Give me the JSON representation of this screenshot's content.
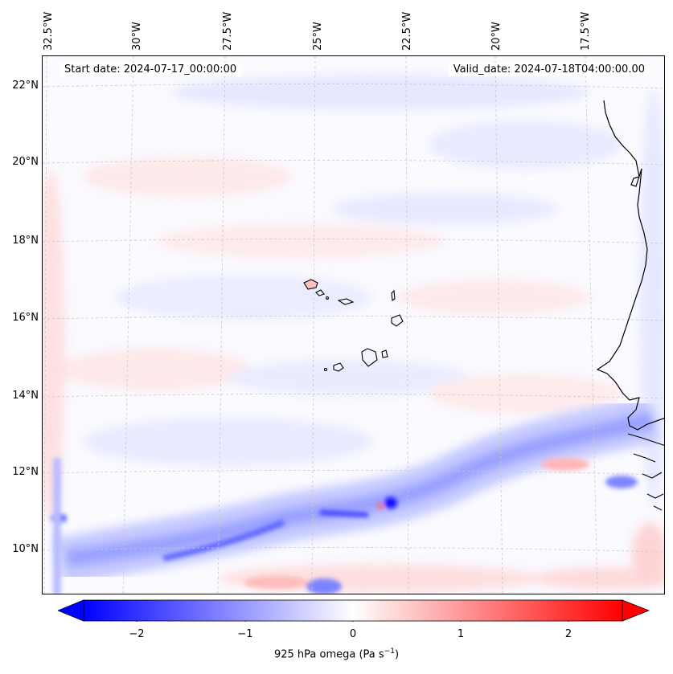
{
  "map": {
    "start_date": "Start date: 2024-07-17_00:00:00",
    "valid_date": "Valid_date: 2024-07-18T04:00:00.00",
    "lon_labels": [
      "32.5°W",
      "30°W",
      "27.5°W",
      "25°W",
      "22.5°W",
      "20°W",
      "17.5°W"
    ],
    "lat_labels": [
      "22°N",
      "20°N",
      "18°N",
      "16°N",
      "14°N",
      "12°N",
      "10°N"
    ],
    "variable": "925 hPa omega",
    "units": "Pa s",
    "units_exponent": "−1",
    "region": "Cape Verde / West Africa coast"
  },
  "colorbar": {
    "ticks": [
      "−2",
      "−1",
      "0",
      "1",
      "2"
    ],
    "tick_values": [
      -2,
      -1,
      0,
      1,
      2
    ],
    "range": [
      -2.5,
      2.5
    ],
    "colormap": "bwr",
    "extend": "both",
    "low_color": "#0000ff",
    "mid_color": "#ffffff",
    "high_color": "#ff0000"
  }
}
